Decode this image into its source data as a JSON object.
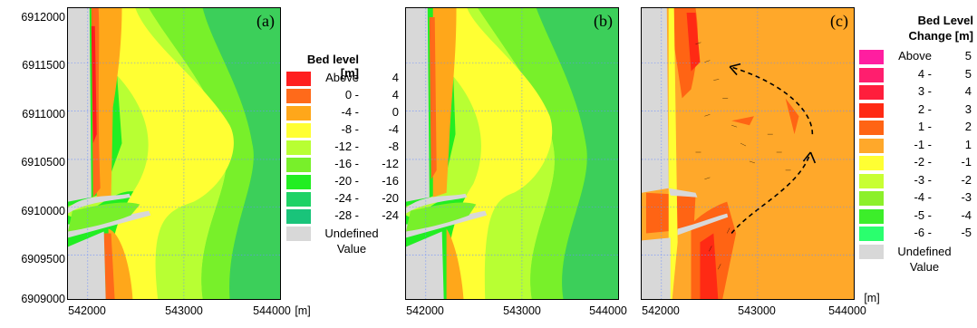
{
  "panel_a": {
    "label": "(a)"
  },
  "panel_b": {
    "label": "(b)"
  },
  "panel_c": {
    "label": "(c)"
  },
  "y_ticks": [
    "6912000",
    "6911500",
    "6911000",
    "6910500",
    "6910000",
    "6909500",
    "6909000"
  ],
  "x_ticks": [
    "542000",
    "543000",
    "544000"
  ],
  "x_unit": "[m]",
  "legend_bed": {
    "title": "Bed level [m]",
    "rows": [
      {
        "lo": "Above",
        "hi": "4",
        "color": "#ff1e1e"
      },
      {
        "lo": "0 -",
        "hi": "4",
        "color": "#ff6a1a"
      },
      {
        "lo": "-4 -",
        "hi": "0",
        "color": "#ffa71a"
      },
      {
        "lo": "-8 -",
        "hi": "-4",
        "color": "#ffff33"
      },
      {
        "lo": "-12 -",
        "hi": "-8",
        "color": "#b8ff33"
      },
      {
        "lo": "-16 -",
        "hi": "-12",
        "color": "#78f02a"
      },
      {
        "lo": "-20 -",
        "hi": "-16",
        "color": "#22ee22"
      },
      {
        "lo": "-24 -",
        "hi": "-20",
        "color": "#1ed266"
      },
      {
        "lo": "-28 -",
        "hi": "-24",
        "color": "#19c47a"
      }
    ],
    "undefined_line1": "Undefined",
    "undefined_line2": "Value",
    "undefined_color": "#d8d8d8"
  },
  "legend_change": {
    "title_line1": "Bed Level",
    "title_line2": "Change [m]",
    "rows": [
      {
        "lo": "Above",
        "hi": "5",
        "color": "#ff1ea0"
      },
      {
        "lo": "4 -",
        "hi": "5",
        "color": "#ff1e6e"
      },
      {
        "lo": "3 -",
        "hi": "4",
        "color": "#ff1e3c"
      },
      {
        "lo": "2 -",
        "hi": "3",
        "color": "#ff2a14"
      },
      {
        "lo": "1 -",
        "hi": "2",
        "color": "#ff6414"
      },
      {
        "lo": "-1 -",
        "hi": "1",
        "color": "#ffa82a"
      },
      {
        "lo": "-2 -",
        "hi": "-1",
        "color": "#ffff33"
      },
      {
        "lo": "-3 -",
        "hi": "-2",
        "color": "#c8ff33"
      },
      {
        "lo": "-4 -",
        "hi": "-3",
        "color": "#8cf02a"
      },
      {
        "lo": "-5 -",
        "hi": "-4",
        "color": "#3cee2a"
      },
      {
        "lo": "-6 -",
        "hi": "-5",
        "color": "#2aff6e"
      }
    ],
    "undefined_line1": "Undefined",
    "undefined_line2": "Value",
    "undefined_color": "#d8d8d8",
    "unit": "[m]"
  }
}
